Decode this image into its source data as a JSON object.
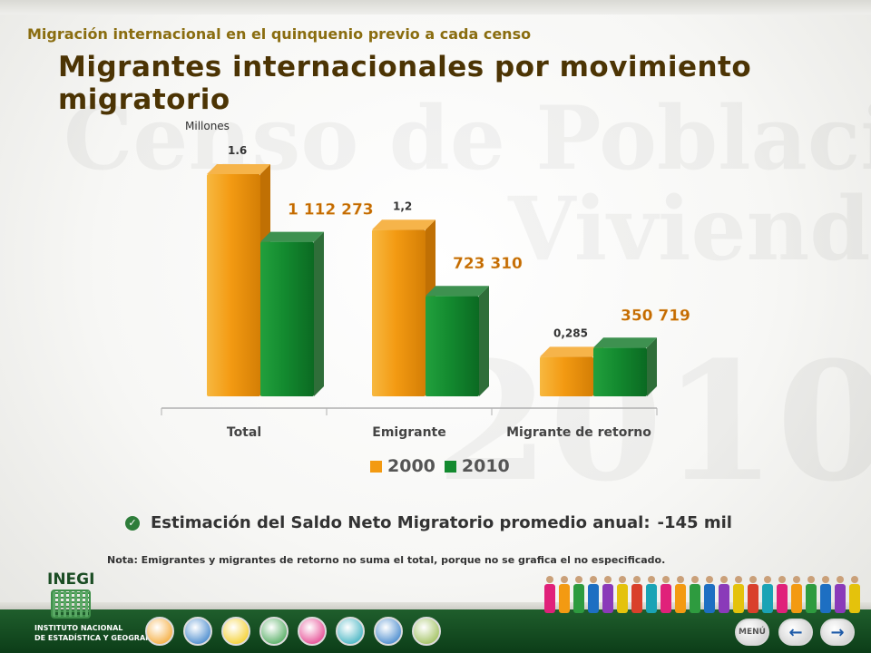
{
  "header": {
    "subtitle": "Migración internacional en el quinquenio previo a cada censo",
    "title": "Migrantes internacionales por movimiento migratorio"
  },
  "watermark": {
    "line1": "Censo de Población",
    "line2": "Vivienda",
    "line3": "2010"
  },
  "chart_data": {
    "type": "bar",
    "units_label": "Millones",
    "categories": [
      "Total",
      "Emigrante",
      "Migrante de retorno"
    ],
    "series": [
      {
        "name": "2000",
        "values": [
          1.6,
          1.2,
          0.285
        ],
        "labels": [
          "1.6",
          "1,2",
          "0,285"
        ],
        "color": "#f39a12"
      },
      {
        "name": "2010",
        "values": [
          1.112273,
          0.72331,
          0.350719
        ],
        "labels": [
          "1 112 273",
          "723 310",
          "350 719"
        ],
        "color": "#138a2f"
      }
    ],
    "ylim": [
      0,
      1.6
    ],
    "legend_position": "bottom",
    "grid": false
  },
  "saldo": {
    "label": "Estimación del Saldo Neto Migratorio promedio anual:",
    "value": "-145 mil"
  },
  "note": "Nota: Emigrantes y migrantes de retorno no suma el total, porque no se grafica el no especificado.",
  "logo": {
    "name": "INEGI",
    "org_line1": "INSTITUTO NACIONAL",
    "org_line2": "DE ESTADÍSTICA Y GEOGRAFÍA"
  },
  "nav": {
    "menu_label": "MENÚ",
    "back_symbol": "←",
    "forward_symbol": "→",
    "icons": [
      "people-icon",
      "info-icon",
      "family-icon",
      "couple-icon",
      "house-icon",
      "home-icon",
      "migration-icon",
      "map-icon"
    ]
  },
  "colors": {
    "title": "#4c3404",
    "subtitle": "#8a6d10",
    "value_2010": "#c46a00"
  }
}
